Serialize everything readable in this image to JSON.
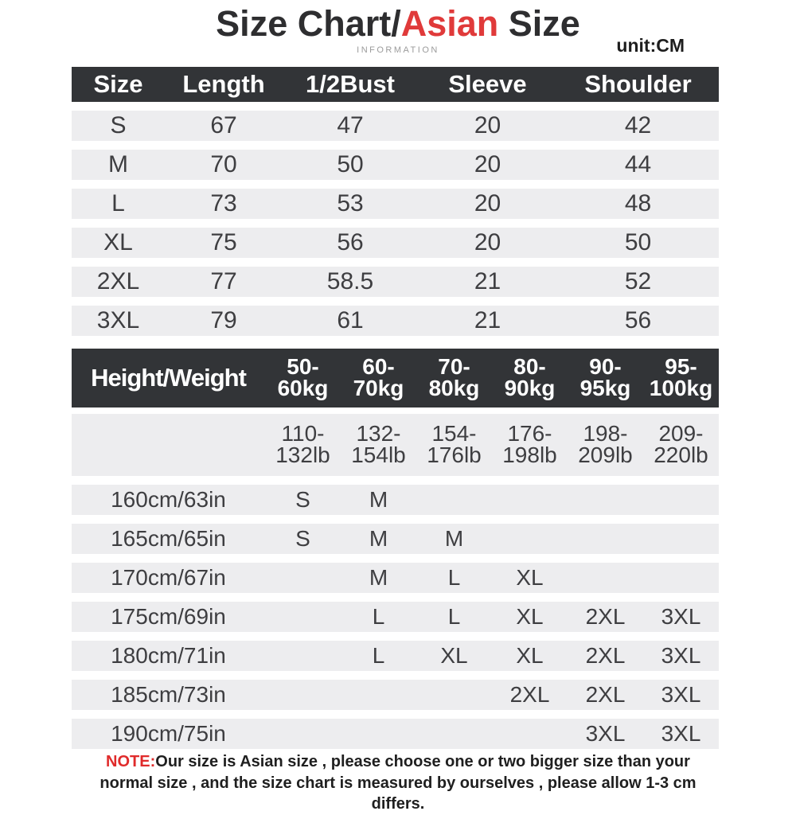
{
  "header": {
    "title_black_1": "Size Chart/",
    "title_accent": "Asian",
    "title_black_2": " Size",
    "subtitle": "INFORMATION",
    "unit": "unit:CM"
  },
  "colors": {
    "accent_red": "#e03a3a",
    "table_header_bg": "#323437",
    "table_row_bg": "#ededef",
    "note_red": "#e02b2b",
    "text_dark": "#3e3e41"
  },
  "size_table": {
    "columns": [
      "Size",
      "Length",
      "1/2Bust",
      "Sleeve",
      "Shoulder"
    ],
    "rows": [
      [
        "S",
        "67",
        "47",
        "20",
        "42"
      ],
      [
        "M",
        "70",
        "50",
        "20",
        "44"
      ],
      [
        "L",
        "73",
        "53",
        "20",
        "48"
      ],
      [
        "XL",
        "75",
        "56",
        "20",
        "50"
      ],
      [
        "2XL",
        "77",
        "58.5",
        "21",
        "52"
      ],
      [
        "3XL",
        "79",
        "61",
        "21",
        "56"
      ]
    ]
  },
  "fit_table": {
    "corner": "Height/Weight",
    "weight_kg": [
      "50-\n60kg",
      "60-\n70kg",
      "70-\n80kg",
      "80-\n90kg",
      "90-\n95kg",
      "95-\n100kg"
    ],
    "weight_lb": [
      "110-\n132lb",
      "132-\n154lb",
      "154-\n176lb",
      "176-\n198lb",
      "198-\n209lb",
      "209-\n220lb"
    ],
    "rows": [
      {
        "height": "160cm/63in",
        "sizes": [
          "S",
          "M",
          "",
          "",
          "",
          ""
        ]
      },
      {
        "height": "165cm/65in",
        "sizes": [
          "S",
          "M",
          "M",
          "",
          "",
          ""
        ]
      },
      {
        "height": "170cm/67in",
        "sizes": [
          "",
          "M",
          "L",
          "XL",
          "",
          ""
        ]
      },
      {
        "height": "175cm/69in",
        "sizes": [
          "",
          "L",
          "L",
          "XL",
          "2XL",
          "3XL"
        ]
      },
      {
        "height": "180cm/71in",
        "sizes": [
          "",
          "L",
          "XL",
          "XL",
          "2XL",
          "3XL"
        ]
      },
      {
        "height": "185cm/73in",
        "sizes": [
          "",
          "",
          "",
          "2XL",
          "2XL",
          "3XL"
        ]
      },
      {
        "height": "190cm/75in",
        "sizes": [
          "",
          "",
          "",
          "",
          "3XL",
          "3XL"
        ]
      }
    ]
  },
  "note": {
    "label": "NOTE:",
    "text": "Our size is Asian size , please choose one or two bigger size than your normal size , and the size chart is measured by ourselves , please allow 1-3 cm differs."
  }
}
